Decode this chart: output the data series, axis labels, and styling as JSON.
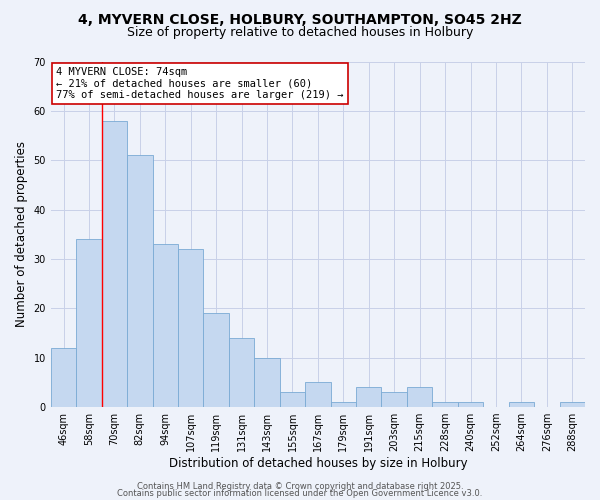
{
  "title_line1": "4, MYVERN CLOSE, HOLBURY, SOUTHAMPTON, SO45 2HZ",
  "title_line2": "Size of property relative to detached houses in Holbury",
  "xlabel": "Distribution of detached houses by size in Holbury",
  "ylabel": "Number of detached properties",
  "bar_labels": [
    "46sqm",
    "58sqm",
    "70sqm",
    "82sqm",
    "94sqm",
    "107sqm",
    "119sqm",
    "131sqm",
    "143sqm",
    "155sqm",
    "167sqm",
    "179sqm",
    "191sqm",
    "203sqm",
    "215sqm",
    "228sqm",
    "240sqm",
    "252sqm",
    "264sqm",
    "276sqm",
    "288sqm"
  ],
  "bar_values": [
    12,
    34,
    58,
    51,
    33,
    32,
    19,
    14,
    10,
    3,
    5,
    1,
    4,
    3,
    4,
    1,
    1,
    0,
    1,
    0,
    1
  ],
  "bar_color": "#c5d8f0",
  "bar_edge_color": "#7aaad4",
  "red_line_index": 2,
  "annotation_text": "4 MYVERN CLOSE: 74sqm\n← 21% of detached houses are smaller (60)\n77% of semi-detached houses are larger (219) →",
  "annotation_box_color": "#ffffff",
  "annotation_box_edge": "#cc0000",
  "ylim": [
    0,
    70
  ],
  "yticks": [
    0,
    10,
    20,
    30,
    40,
    50,
    60,
    70
  ],
  "footer_line1": "Contains HM Land Registry data © Crown copyright and database right 2025.",
  "footer_line2": "Contains public sector information licensed under the Open Government Licence v3.0.",
  "bg_color": "#eef2fa",
  "grid_color": "#c8d0e8",
  "title_fontsize": 10,
  "subtitle_fontsize": 9,
  "axis_label_fontsize": 8.5,
  "tick_fontsize": 7,
  "annotation_fontsize": 7.5,
  "footer_fontsize": 6
}
